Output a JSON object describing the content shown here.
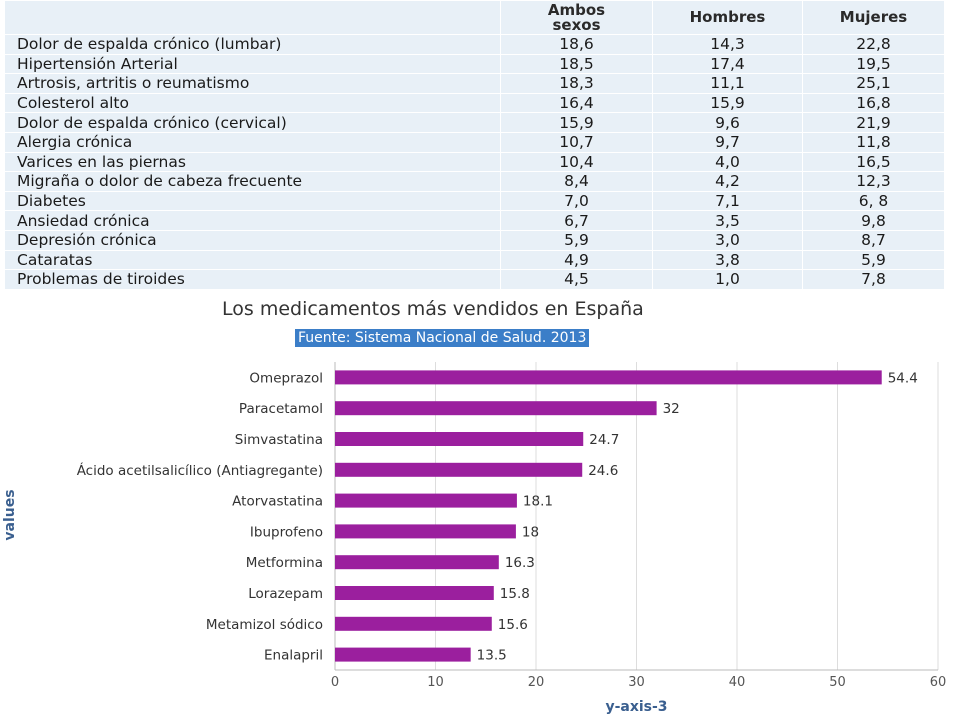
{
  "table": {
    "headers": [
      "",
      "Ambos\nsexos",
      "Hombres",
      "Mujeres"
    ],
    "rows": [
      [
        "Dolor de espalda crónico (lumbar)",
        "18,6",
        "14,3",
        "22,8"
      ],
      [
        "Hipertensión Arterial",
        "18,5",
        "17,4",
        "19,5"
      ],
      [
        "Artrosis, artritis o reumatismo",
        "18,3",
        "11,1",
        "25,1"
      ],
      [
        "Colesterol alto",
        "16,4",
        "15,9",
        "16,8"
      ],
      [
        "Dolor de espalda crónico (cervical)",
        "15,9",
        "9,6",
        "21,9"
      ],
      [
        "Alergia crónica",
        "10,7",
        "9,7",
        "11,8"
      ],
      [
        "Varices en las piernas",
        "10,4",
        "4,0",
        "16,5"
      ],
      [
        "Migraña o dolor de cabeza frecuente",
        "8,4",
        "4,2",
        "12,3"
      ],
      [
        "Diabetes",
        "7,0",
        "7,1",
        "6, 8"
      ],
      [
        "Ansiedad crónica",
        "6,7",
        "3,5",
        "9,8"
      ],
      [
        "Depresión crónica",
        "5,9",
        "3,0",
        "8,7"
      ],
      [
        "Cataratas",
        "4,9",
        "3,8",
        "5,9"
      ],
      [
        "Problemas de tiroides",
        "4,5",
        "1,0",
        "7,8"
      ]
    ]
  },
  "chart_data": {
    "type": "bar",
    "orientation": "horizontal",
    "title": "Los medicamentos más vendidos en España",
    "subtitle": "Fuente: Sistema Nacional de Salud. 2013",
    "categories": [
      "Omeprazol",
      "Paracetamol",
      "Simvastatina",
      "Ácido acetilsalicílico (Antiagregante)",
      "Atorvastatina",
      "Ibuprofeno",
      "Metformina",
      "Lorazepam",
      "Metamizol sódico",
      "Enalapril"
    ],
    "values": [
      54.4,
      32,
      24.7,
      24.6,
      18.1,
      18,
      16.3,
      15.8,
      15.6,
      13.5
    ],
    "xlim": [
      0,
      60
    ],
    "ticks": [
      0,
      10,
      20,
      30,
      40,
      50,
      60
    ],
    "xlabel": "y-axis-3",
    "ylabel": "values",
    "grid": true,
    "bar_color": "#9b1f9e",
    "grid_color": "#dddddd"
  }
}
